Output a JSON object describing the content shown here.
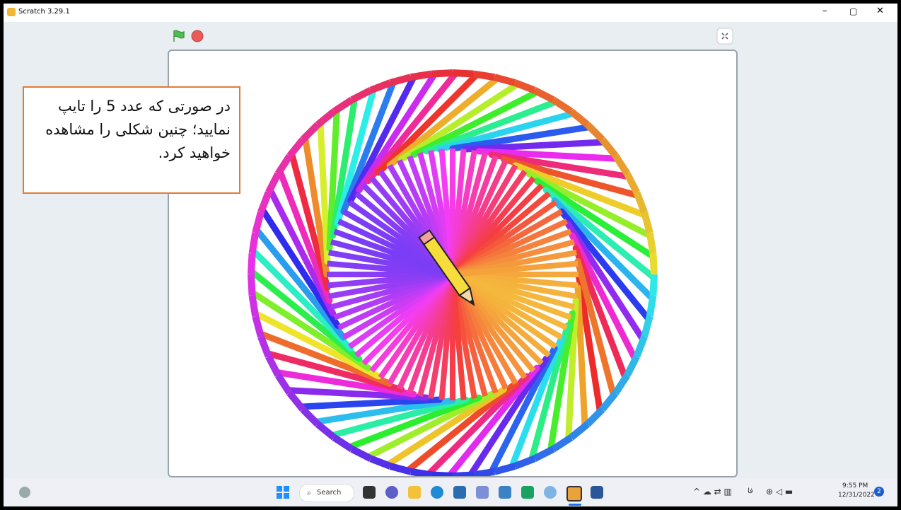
{
  "window": {
    "title": "Scratch 3.29.1"
  },
  "callout": {
    "lines": [
      "در صورتی که عدد 5 را تایپ",
      "نمایید؛ چنین شکلی را مشاهده",
      "خواهید کرد."
    ]
  },
  "taskbar": {
    "search": "Search",
    "language": "فا",
    "time": "9:55 PM",
    "date": "12/31/2022",
    "badge": "2"
  }
}
